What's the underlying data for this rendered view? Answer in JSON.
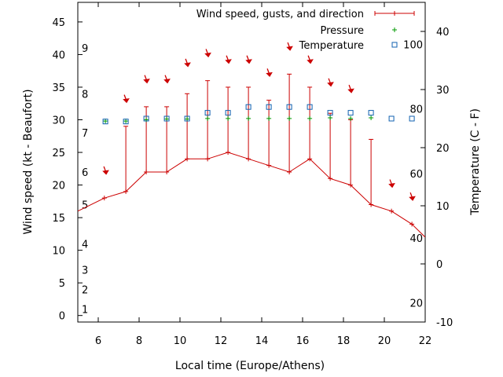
{
  "chart_data": {
    "type": "line",
    "xlabel": "Local time (Europe/Athens)",
    "ylabel": "Wind speed (kt - Beaufort)",
    "y2label": "Temperature (C - F)",
    "xlim": [
      5,
      22
    ],
    "ylim": [
      -1,
      48
    ],
    "y2lim": [
      -10,
      45
    ],
    "xticks": [
      "6",
      "8",
      "10",
      "12",
      "14",
      "16",
      "18",
      "20",
      "22"
    ],
    "yticks": [
      "0",
      "5",
      "10",
      "15",
      "20",
      "25",
      "30",
      "35",
      "40",
      "45"
    ],
    "y2ticks": [
      "-10",
      "0",
      "10",
      "20",
      "30",
      "40"
    ],
    "beaufort_labels": [
      "1",
      "2",
      "3",
      "4",
      "5",
      "6",
      "7",
      "8",
      "9"
    ],
    "beaufort_values": [
      1,
      2,
      3,
      4,
      5,
      6,
      7,
      8,
      9
    ],
    "beaufort_y": [
      1,
      4,
      7,
      11,
      17,
      22,
      28,
      34,
      41
    ],
    "fahrenheit_labels": [
      "20",
      "40",
      "60",
      "80",
      "100"
    ],
    "fahrenheit_values": [
      20,
      40,
      60,
      80,
      100
    ],
    "legend": {
      "position": "top-right",
      "entries": [
        "Wind speed, gusts, and direction",
        "Pressure",
        "Temperature"
      ]
    },
    "colors": {
      "wind": "#cc0000",
      "pressure": "#009900",
      "temperature": "#1060b0"
    },
    "series": [
      {
        "name": "Wind speed, gusts, and direction",
        "x": [
          5,
          6.3,
          7.35,
          8.35,
          9.35,
          10.35,
          11.35,
          12.35,
          13.35,
          14.35,
          15.35,
          16.35,
          17.35,
          18.35,
          19.35,
          20.35,
          21.35,
          22
        ],
        "values": [
          16,
          18,
          19,
          22,
          22,
          24,
          24,
          25,
          24,
          23,
          22,
          24,
          21,
          20,
          17,
          16,
          14,
          12
        ],
        "gusts": [
          null,
          null,
          29,
          32,
          32,
          34,
          36,
          35,
          35,
          33,
          37,
          35,
          31,
          30,
          27,
          null,
          null,
          null
        ],
        "arrow_x": [
          6.35,
          7.35,
          8.35,
          9.35,
          10.35,
          11.35,
          12.35,
          13.35,
          14.35,
          15.35,
          16.35,
          17.35,
          18.35,
          20.35,
          21.35
        ],
        "arrow_y": [
          22,
          33,
          36,
          36,
          38.5,
          40,
          39,
          39,
          37,
          41,
          39,
          35.5,
          34.5,
          20,
          18
        ]
      },
      {
        "name": "Pressure",
        "x": [
          6.35,
          7.35,
          8.35,
          9.35,
          10.35,
          11.35,
          12.35,
          13.35,
          14.35,
          15.35,
          16.35,
          17.35,
          18.35,
          19.35
        ],
        "values": [
          29.8,
          29.8,
          30,
          30.1,
          30.1,
          30.2,
          30.2,
          30.2,
          30.2,
          30.2,
          30.2,
          30.3,
          30.2,
          30.3
        ]
      },
      {
        "name": "Temperature",
        "x": [
          6.35,
          7.35,
          8.35,
          9.35,
          10.35,
          11.35,
          12.35,
          13.35,
          14.35,
          15.35,
          16.35,
          17.35,
          18.35,
          19.35,
          20.35,
          21.35
        ],
        "values": [
          24.5,
          24.5,
          25,
          25,
          25,
          26,
          26,
          27,
          27,
          27,
          27,
          26,
          26,
          26,
          25,
          25
        ]
      }
    ]
  }
}
